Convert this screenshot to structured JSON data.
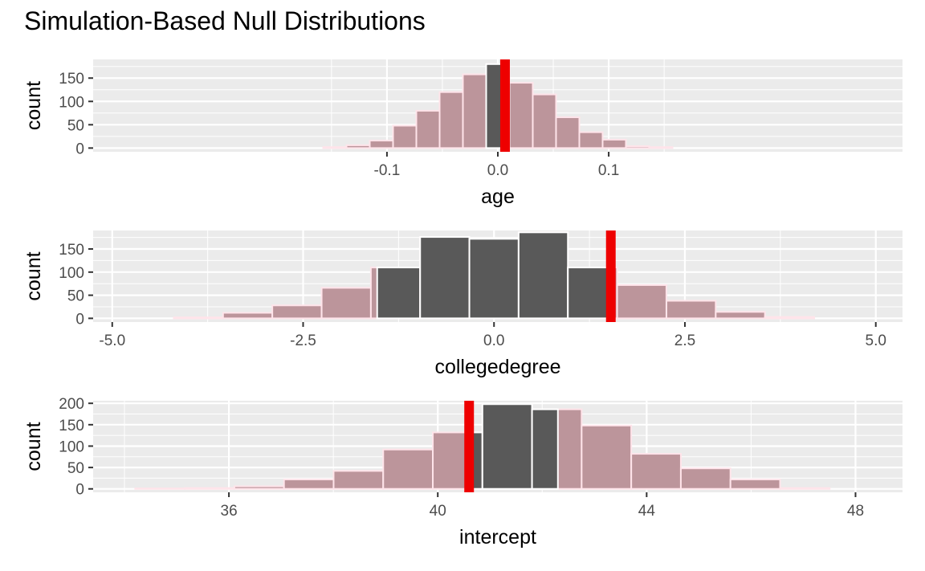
{
  "chart_data": {
    "title": "Simulation-Based Null Distributions",
    "type": "bar",
    "facet_layout": "stacked-vertical",
    "colors": {
      "panel_bg": "#ebebeb",
      "grid": "#ffffff",
      "bar_tail": "#bc959b",
      "bar_tail_outline": "#ffe4ea",
      "bar_middle": "#595959",
      "bar_middle_outline": "#ffffff",
      "observed_line": "#ee0000"
    },
    "panels": [
      {
        "xlabel": "age",
        "ylabel": "count",
        "xlim": [
          -0.365,
          0.365
        ],
        "ylim": [
          -8,
          190
        ],
        "x_ticks": [
          -0.1,
          0.0,
          0.1
        ],
        "x_tick_labels": [
          "-0.1",
          "0.0",
          "0.1"
        ],
        "y_ticks": [
          0,
          50,
          100,
          150
        ],
        "y_tick_labels": [
          "0",
          "50",
          "100",
          "150"
        ],
        "bin_width": 0.021,
        "bin_centers": [
          -0.147,
          -0.126,
          -0.105,
          -0.084,
          -0.063,
          -0.042,
          -0.021,
          0.0,
          0.021,
          0.042,
          0.063,
          0.084,
          0.105,
          0.126,
          0.147
        ],
        "counts": [
          2,
          6,
          16,
          48,
          80,
          120,
          158,
          180,
          140,
          115,
          66,
          34,
          18,
          4,
          2
        ],
        "middle_range": [
          -0.0105,
          0.0065
        ],
        "observed": 0.0065
      },
      {
        "xlabel": "collegedegree",
        "ylabel": "count",
        "xlim": [
          -5.25,
          5.35
        ],
        "ylim": [
          -8,
          190
        ],
        "x_ticks": [
          -5.0,
          -2.5,
          0.0,
          2.5,
          5.0
        ],
        "x_tick_labels": [
          "-5.0",
          "-2.5",
          "0.0",
          "2.5",
          "5.0"
        ],
        "y_ticks": [
          0,
          50,
          100,
          150
        ],
        "y_tick_labels": [
          "0",
          "50",
          "100",
          "150"
        ],
        "bin_width": 0.645,
        "bin_centers": [
          -3.871,
          -3.226,
          -2.581,
          -1.935,
          -1.29,
          -0.645,
          0.0,
          0.645,
          1.29,
          1.935,
          2.581,
          3.226,
          3.871
        ],
        "counts": [
          2,
          12,
          28,
          66,
          110,
          176,
          172,
          186,
          110,
          72,
          38,
          14,
          3
        ],
        "middle_range": [
          -1.53,
          1.53
        ],
        "observed": 1.53
      },
      {
        "xlabel": "intercept",
        "ylabel": "count",
        "xlim": [
          33.4,
          48.9
        ],
        "ylim": [
          -8,
          206
        ],
        "x_ticks": [
          36,
          40,
          44,
          48
        ],
        "x_tick_labels": [
          "36",
          "40",
          "44",
          "48"
        ],
        "y_ticks": [
          0,
          50,
          100,
          150,
          200
        ],
        "y_tick_labels": [
          "0",
          "50",
          "100",
          "150",
          "200"
        ],
        "bin_width": 0.95,
        "bin_centers": [
          34.68,
          35.63,
          36.58,
          37.53,
          38.48,
          39.43,
          40.38,
          41.33,
          42.28,
          43.23,
          44.18,
          45.13,
          46.08,
          47.03
        ],
        "counts": [
          1,
          2,
          6,
          22,
          42,
          92,
          132,
          198,
          186,
          148,
          82,
          48,
          22,
          2
        ],
        "middle_range": [
          40.6,
          42.3
        ],
        "observed": 40.6
      }
    ]
  }
}
